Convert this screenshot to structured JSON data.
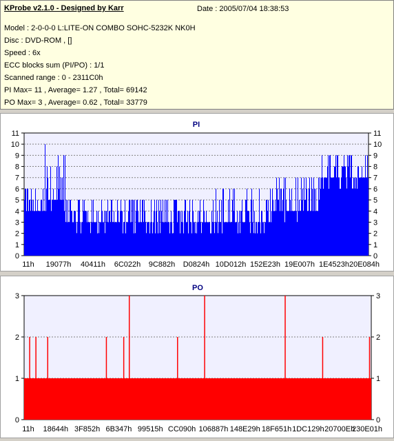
{
  "header": {
    "title": "KProbe v2.1.0 - Designed by Karr",
    "date": "Date : 2005/07/04 18:38:53",
    "lines": [
      "Model : 2-0-0-0 L:LITE-ON COMBO SOHC-5232K NK0H",
      "Disc : DVD-ROM ,  []",
      "Speed : 6x",
      "ECC blocks sum (PI/PO) : 1/1",
      "Scanned range : 0 - 2311C0h",
      "PI Max= 11 , Average= 1.27 , Total= 69142",
      "PO Max= 3 , Average= 0.62 , Total= 33779"
    ]
  },
  "colors": {
    "pi_bar": "#0000ff",
    "po_bar": "#ff0000",
    "plot_bg": "#f0f0ff",
    "title": "#000080"
  },
  "chart_data": [
    {
      "type": "bar",
      "title": "PI",
      "ylim": [
        0,
        11
      ],
      "yticks": [
        0,
        1,
        2,
        3,
        4,
        5,
        6,
        7,
        8,
        9,
        10,
        11
      ],
      "xticks": [
        "11h",
        "19077h",
        "40411h",
        "6C022h",
        "9C882h",
        "D0824h",
        "10D012h",
        "152E23h",
        "19E007h",
        "1E4523h",
        "20E084h"
      ],
      "x_range": "0 - 2311C0h",
      "segments": [
        {
          "from": 0.0,
          "to": 0.06,
          "base": 4,
          "peak": 6
        },
        {
          "from": 0.06,
          "to": 0.12,
          "base": 5,
          "peak": 11
        },
        {
          "from": 0.12,
          "to": 0.3,
          "base": 3,
          "peak": 5
        },
        {
          "from": 0.3,
          "to": 0.55,
          "base": 3,
          "peak": 5
        },
        {
          "from": 0.55,
          "to": 0.72,
          "base": 3,
          "peak": 6
        },
        {
          "from": 0.72,
          "to": 0.86,
          "base": 4,
          "peak": 7
        },
        {
          "from": 0.86,
          "to": 1.0,
          "base": 7,
          "peak": 9
        }
      ]
    },
    {
      "type": "bar",
      "title": "PO",
      "ylim": [
        0,
        3
      ],
      "yticks": [
        0,
        1,
        2,
        3
      ],
      "xticks": [
        "11h",
        "18644h",
        "3F852h",
        "6B347h",
        "99515h",
        "CC090h",
        "106887h",
        "148E29h",
        "18F651h",
        "1DC129h",
        "20700Eh",
        "230E01h"
      ],
      "x_range": "0 - 2311C0h",
      "base": 1,
      "spikes": [
        {
          "x": 0.016,
          "value": 2
        },
        {
          "x": 0.034,
          "value": 2
        },
        {
          "x": 0.068,
          "value": 2
        },
        {
          "x": 0.237,
          "value": 2
        },
        {
          "x": 0.287,
          "value": 2
        },
        {
          "x": 0.303,
          "value": 3
        },
        {
          "x": 0.442,
          "value": 2
        },
        {
          "x": 0.52,
          "value": 3
        },
        {
          "x": 0.752,
          "value": 3
        },
        {
          "x": 0.86,
          "value": 2
        },
        {
          "x": 0.995,
          "value": 2
        }
      ]
    }
  ]
}
